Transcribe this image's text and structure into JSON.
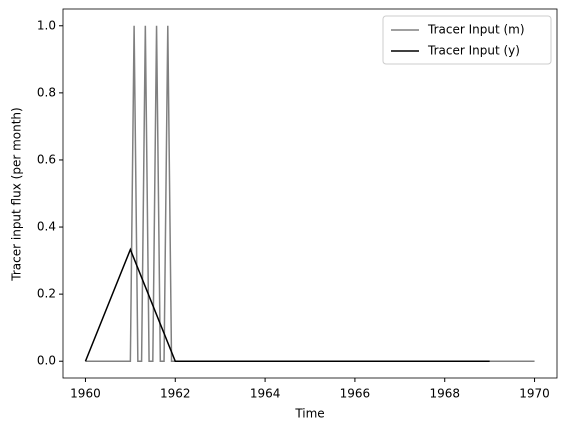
{
  "chart_data": {
    "type": "line",
    "xlabel": "Time",
    "ylabel": "Tracer input flux (per month)",
    "xlim": [
      1959.5,
      1970.5
    ],
    "ylim": [
      -0.05,
      1.05
    ],
    "xticks": [
      1960,
      1962,
      1964,
      1966,
      1968,
      1970
    ],
    "yticks": [
      {
        "value": 0,
        "label": "0.0"
      },
      {
        "value": 0.2,
        "label": "0.2"
      },
      {
        "value": 0.4,
        "label": "0.4"
      },
      {
        "value": 0.6,
        "label": "0.6"
      },
      {
        "value": 0.8,
        "label": "0.8"
      },
      {
        "value": 1,
        "label": "1.0"
      }
    ],
    "legend": "upper right",
    "series": [
      {
        "name": "Tracer Input (m)",
        "color": "#808080",
        "x": [
          1960,
          1961,
          1961.0833,
          1961.1667,
          1961.25,
          1961.3333,
          1961.4167,
          1961.5,
          1961.5833,
          1961.6667,
          1961.75,
          1961.8333,
          1961.9167,
          1970
        ],
        "values": [
          0,
          0,
          1,
          0,
          0,
          1,
          0,
          0,
          1,
          0,
          0,
          1,
          0,
          0
        ]
      },
      {
        "name": "Tracer Input (y)",
        "color": "#000000",
        "x": [
          1960,
          1961,
          1962,
          1969
        ],
        "values": [
          0,
          0.333,
          0,
          0
        ]
      }
    ]
  }
}
